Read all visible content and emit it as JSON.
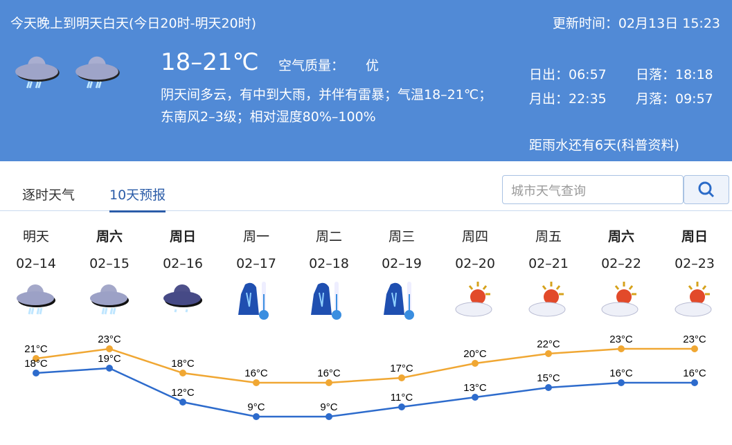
{
  "header": {
    "period": "今天晚上到明天白天(今日20时-明天20时)",
    "updated": "更新时间：02月13日 15:23",
    "temp_range": "18–21℃",
    "aqi_label": "空气质量：",
    "aqi_value": "优",
    "description": "阴天间多云，有中到大雨，并伴有雷暴；气温18–21℃；东南风2–3级；相对湿度80%–100%",
    "sunrise": "日出：06:57",
    "sunset": "日落：18:18",
    "moonrise": "月出：22:35",
    "moonset": "月落：09:57",
    "rain_note": "距雨水还有6天(科普资料)",
    "icons": [
      "rain-cloud-icon",
      "rain-cloud-icon"
    ]
  },
  "tabs": [
    {
      "label": "逐时天气",
      "active": false
    },
    {
      "label": "10天预报",
      "active": true
    }
  ],
  "search": {
    "placeholder": "城市天气查询"
  },
  "days": [
    {
      "week": "明天",
      "date": "02–14",
      "bold": false,
      "icon": "heavy-rain-icon"
    },
    {
      "week": "周六",
      "date": "02–15",
      "bold": true,
      "icon": "heavy-rain-icon"
    },
    {
      "week": "周日",
      "date": "02–16",
      "bold": true,
      "icon": "light-rain-icon"
    },
    {
      "week": "周一",
      "date": "02–17",
      "bold": false,
      "icon": "cold-warning-icon"
    },
    {
      "week": "周二",
      "date": "02–18",
      "bold": false,
      "icon": "cold-warning-icon"
    },
    {
      "week": "周三",
      "date": "02–19",
      "bold": false,
      "icon": "cold-warning-icon"
    },
    {
      "week": "周四",
      "date": "02–20",
      "bold": false,
      "icon": "cloudy-sun-icon"
    },
    {
      "week": "周五",
      "date": "02–21",
      "bold": false,
      "icon": "partly-cloudy-icon"
    },
    {
      "week": "周六",
      "date": "02–22",
      "bold": true,
      "icon": "partly-cloudy-icon"
    },
    {
      "week": "周日",
      "date": "02–23",
      "bold": true,
      "icon": "partly-cloudy-icon"
    }
  ],
  "chart_data": {
    "type": "line",
    "categories": [
      "02–14",
      "02–15",
      "02–16",
      "02–17",
      "02–18",
      "02–19",
      "02–20",
      "02–21",
      "02–22",
      "02–23"
    ],
    "series": [
      {
        "values": [
          21,
          23,
          18,
          16,
          16,
          17,
          20,
          22,
          23,
          23
        ],
        "color": "#f0a733"
      },
      {
        "values": [
          18,
          19,
          12,
          9,
          9,
          11,
          13,
          15,
          16,
          16
        ],
        "color": "#2d6bcc"
      }
    ],
    "unit": "°C"
  },
  "colors": {
    "header_bg": "#518ad6",
    "high": "#f0a733",
    "low": "#2d6bcc",
    "tab_active": "#2b5ca8"
  }
}
